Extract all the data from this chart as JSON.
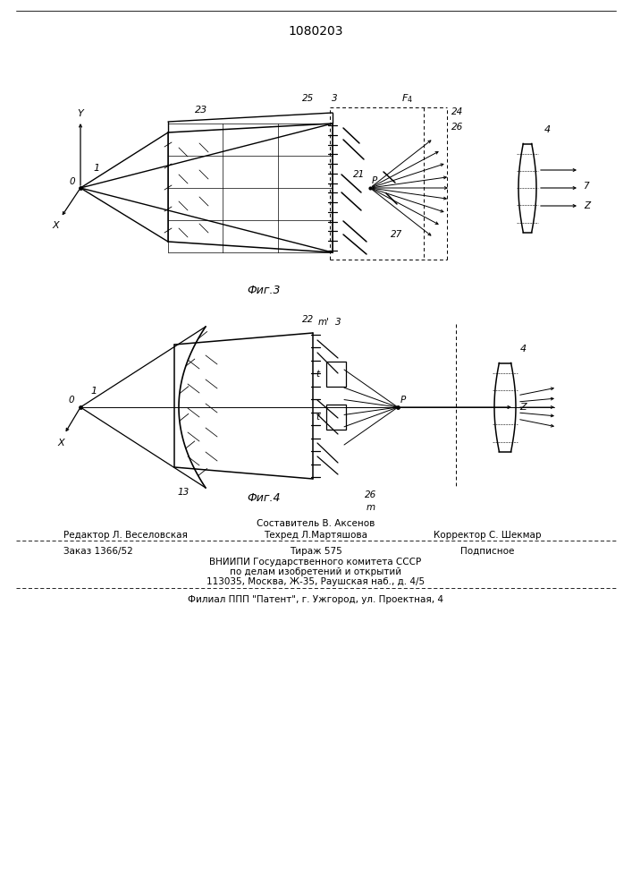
{
  "title": "1080203",
  "fig3_label": "Фиг.3",
  "fig4_label": "Фиг.4",
  "footer": {
    "line1": "Составитель В. Аксенов",
    "line2_left": "Редактор Л. Веселовская",
    "line2_mid": "Техред Л.Мартяшова",
    "line2_right": "Корректор С. Шекмар",
    "line3_left": "Заказ 1366/52",
    "line3_mid": "Тираж 575",
    "line3_right": "Подписное",
    "line4": "ВНИИПИ Государственного комитета СССР",
    "line5": "по делам изобретений и открытий",
    "line6": "113035, Москва, Ж-35, Раушская наб., д. 4/5",
    "line7": "Филиал ППП \"Патент\", г. Ужгород, ул. Проектная, 4"
  }
}
